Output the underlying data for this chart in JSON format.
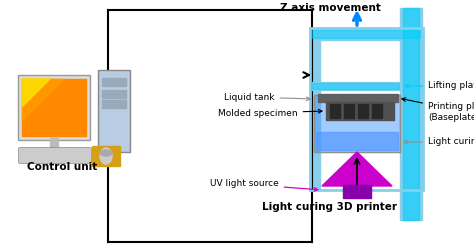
{
  "bg_color": "#ffffff",
  "labels": {
    "z_axis": "Z axis movement",
    "lifting": "Lifting platform",
    "printing": "Printing platform\n(Baseplate)",
    "liquid_tank": "Liquid tank",
    "molded": "Molded specimen",
    "uv_source": "UV light source",
    "slurry": "Light curing slurry",
    "control": "Control unit",
    "printer": "Light curing 3D printer"
  },
  "colors": {
    "light_blue": "#ADD8E6",
    "blue_fill": "#87CEEB",
    "cyan_bright": "#00CFFF",
    "blue_mid": "#63C5DA",
    "blue_dark": "#4A90D9",
    "gray_light": "#C8C8C8",
    "gray_mid": "#909090",
    "gray_dark": "#606060",
    "gray_darkest": "#404040",
    "magenta": "#CC00CC",
    "purple_dark": "#8800AA",
    "blue_liquid": "#4499FF",
    "orange": "#FF8800",
    "yellow": "#FFD700",
    "tan": "#D2B48C",
    "white": "#FFFFFF",
    "black": "#000000",
    "cyan_arrow": "#0088FF",
    "tower_blue": "#B8CCE4"
  }
}
